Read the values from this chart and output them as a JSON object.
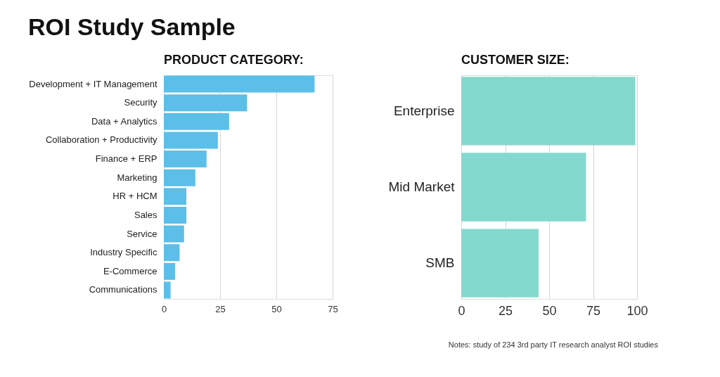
{
  "chart_data": [
    {
      "type": "bar",
      "title": "ROI Study Sample",
      "subtitle": "PRODUCT CATEGORY:",
      "orientation": "horizontal",
      "categories": [
        "Development + IT Management",
        "Security",
        "Data + Analytics",
        "Collaboration + Productivity",
        "Finance + ERP",
        "Marketing",
        "HR + HCM",
        "Sales",
        "Service",
        "Industry Specific",
        "E-Commerce",
        "Communications"
      ],
      "values": [
        67,
        37,
        29,
        24,
        19,
        14,
        10,
        10,
        9,
        7,
        5,
        3
      ],
      "color": "#5bbfe8",
      "xlim": [
        0,
        75
      ],
      "xticks": [
        0,
        25,
        50,
        75
      ],
      "grid": "x"
    },
    {
      "type": "bar",
      "title": "CUSTOMER SIZE:",
      "orientation": "horizontal",
      "categories": [
        "Enterprise",
        "Mid Market",
        "SMB"
      ],
      "values": [
        99,
        71,
        44
      ],
      "color": "#84d9cf",
      "xlim": [
        0,
        100
      ],
      "xticks": [
        0,
        25,
        50,
        75,
        100
      ],
      "grid": "x",
      "annotations": [
        "Notes: study of 234 3rd party IT research analyst ROI studies"
      ]
    }
  ]
}
